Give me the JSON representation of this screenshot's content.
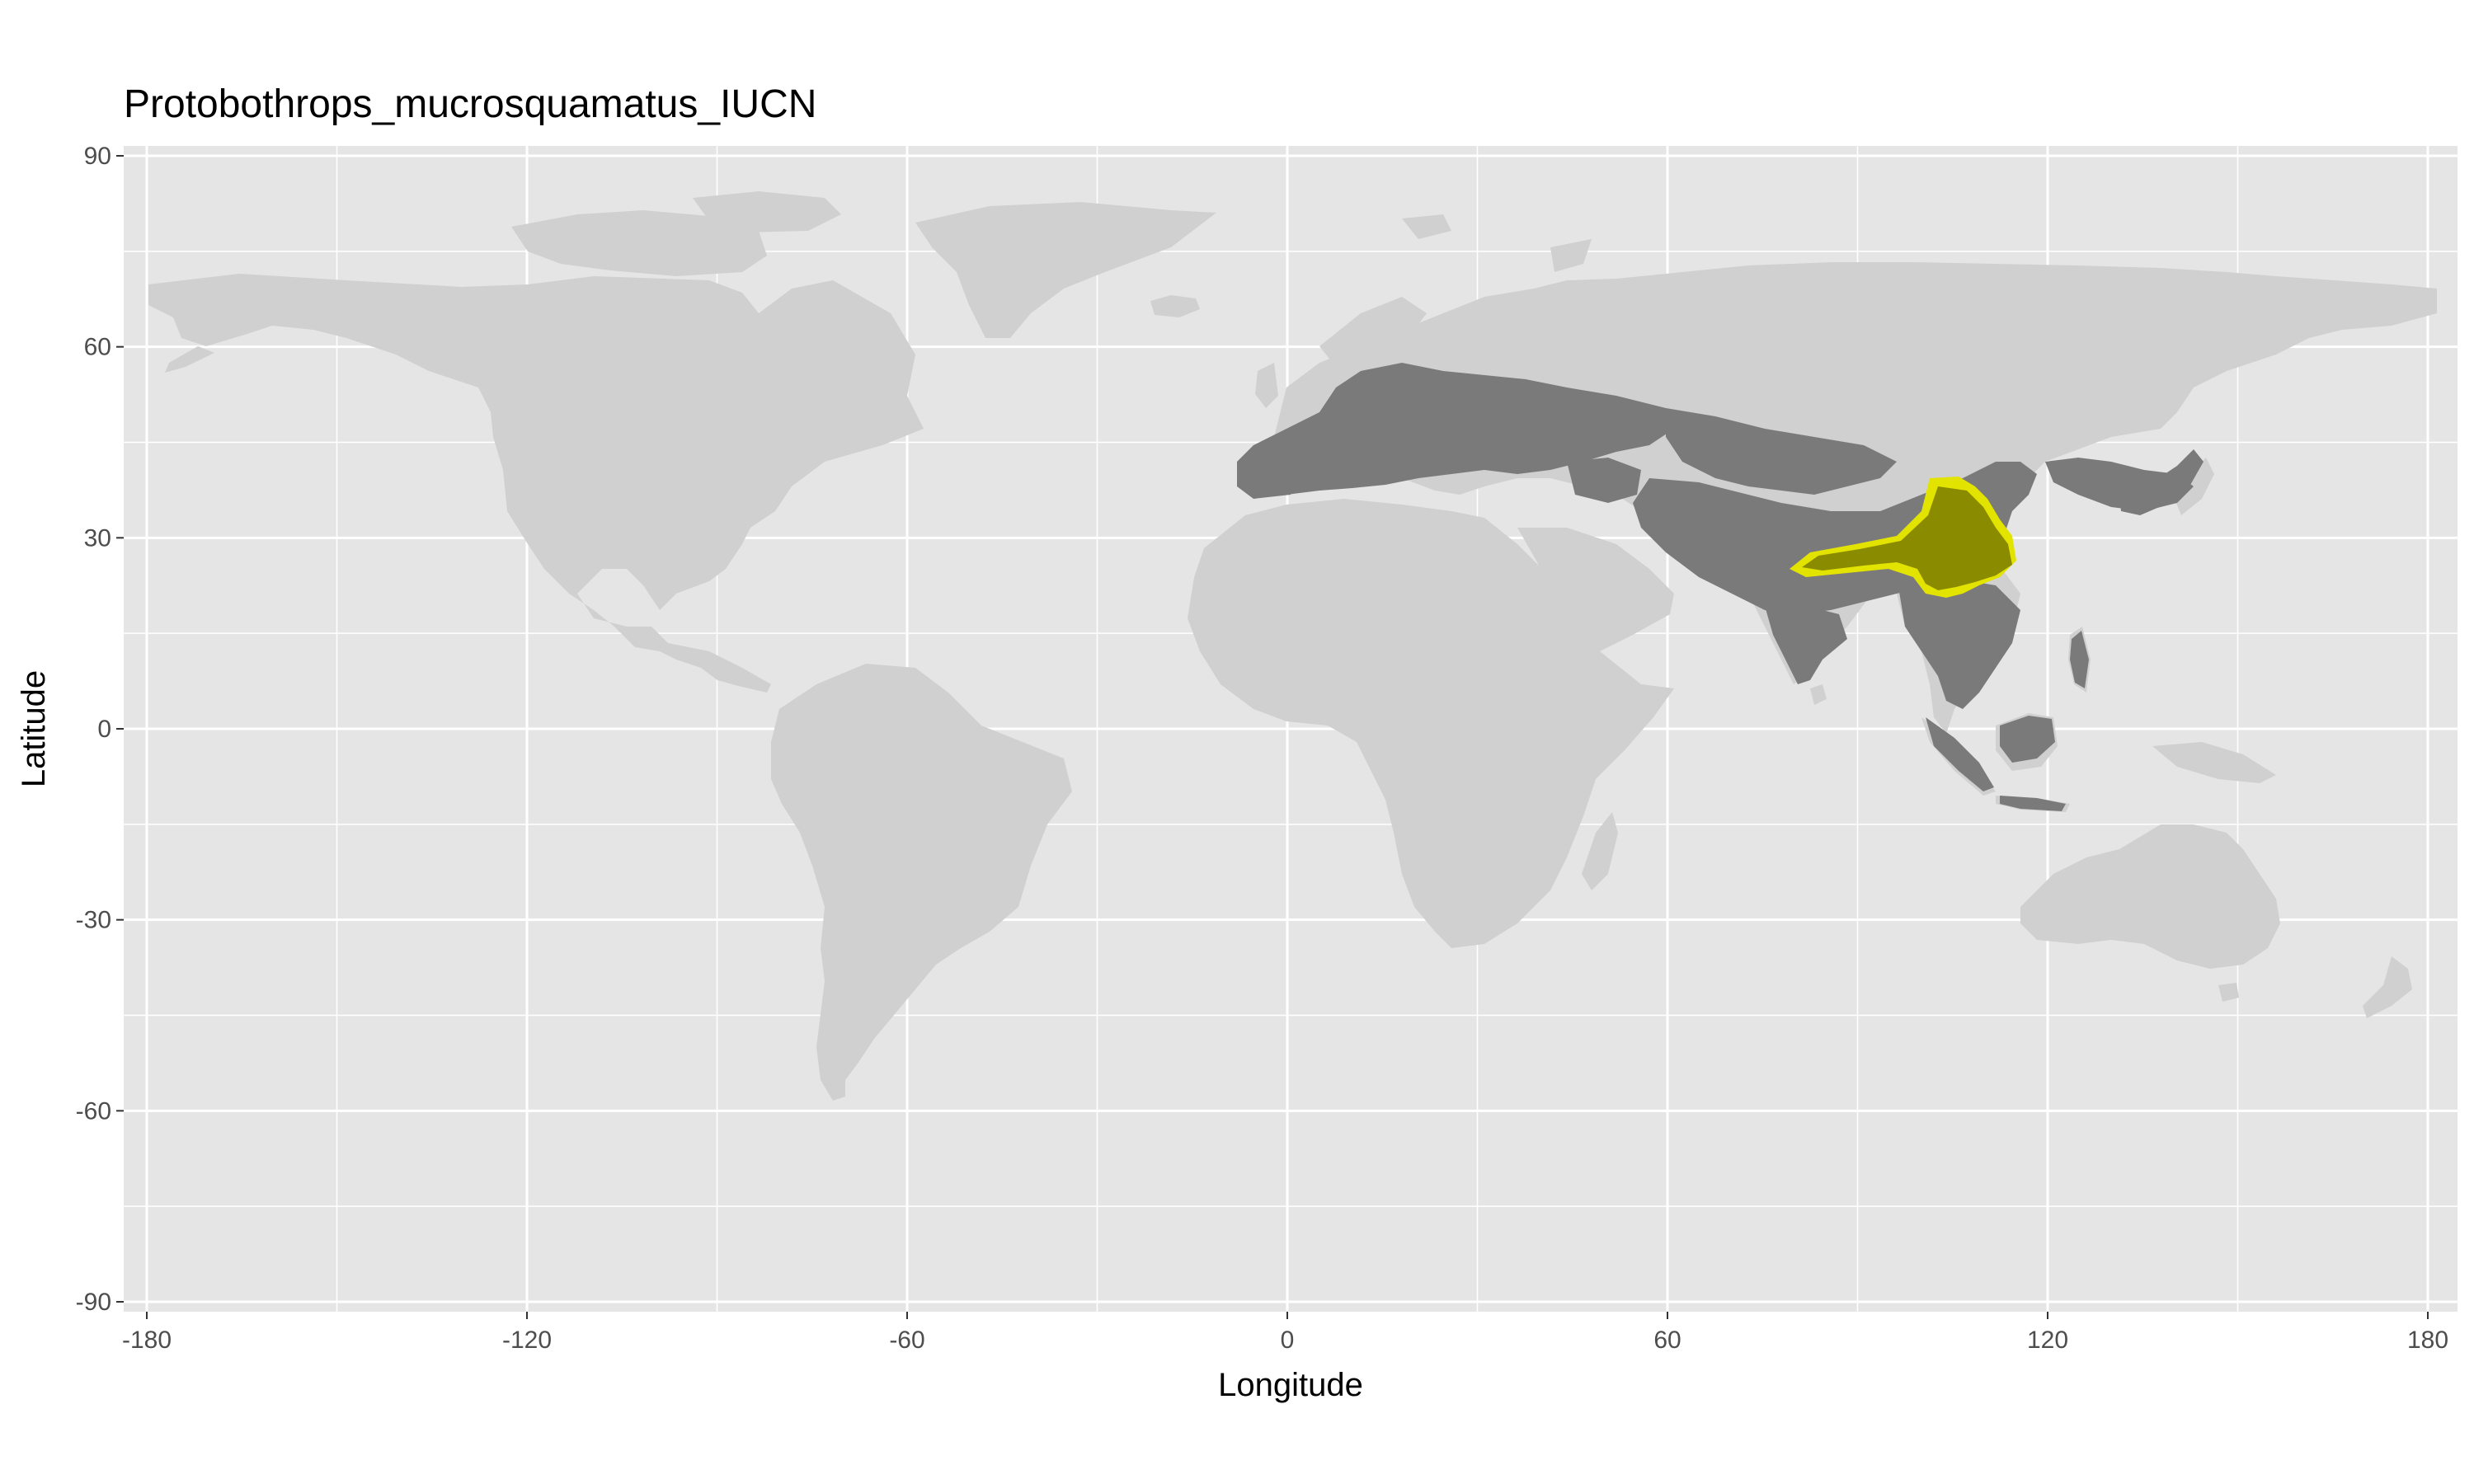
{
  "map": {
    "title": "Protobothrops_mucrosquamatus_IUCN",
    "x_axis": {
      "label": "Longitude",
      "range": [
        -180,
        180
      ],
      "ticks": [
        -180,
        -120,
        -60,
        0,
        60,
        120,
        180
      ],
      "tick_labels": [
        "-180",
        "-120",
        "-60",
        "0",
        "60",
        "120",
        "180"
      ]
    },
    "y_axis": {
      "label": "Latitude",
      "range": [
        -90,
        90
      ],
      "ticks": [
        90,
        60,
        30,
        0,
        -30,
        -60,
        -90
      ],
      "tick_labels": [
        "90",
        "60",
        "30",
        "0",
        "-30",
        "-60",
        "-90"
      ]
    },
    "grid": true,
    "colors": {
      "panel_background": "#e5e5e5",
      "grid_line": "#ffffff",
      "land": "#d0d0d0",
      "study_region": "#7a7a7a",
      "species_range": "#8b8b00",
      "range_edge": "#e3e300"
    }
  }
}
